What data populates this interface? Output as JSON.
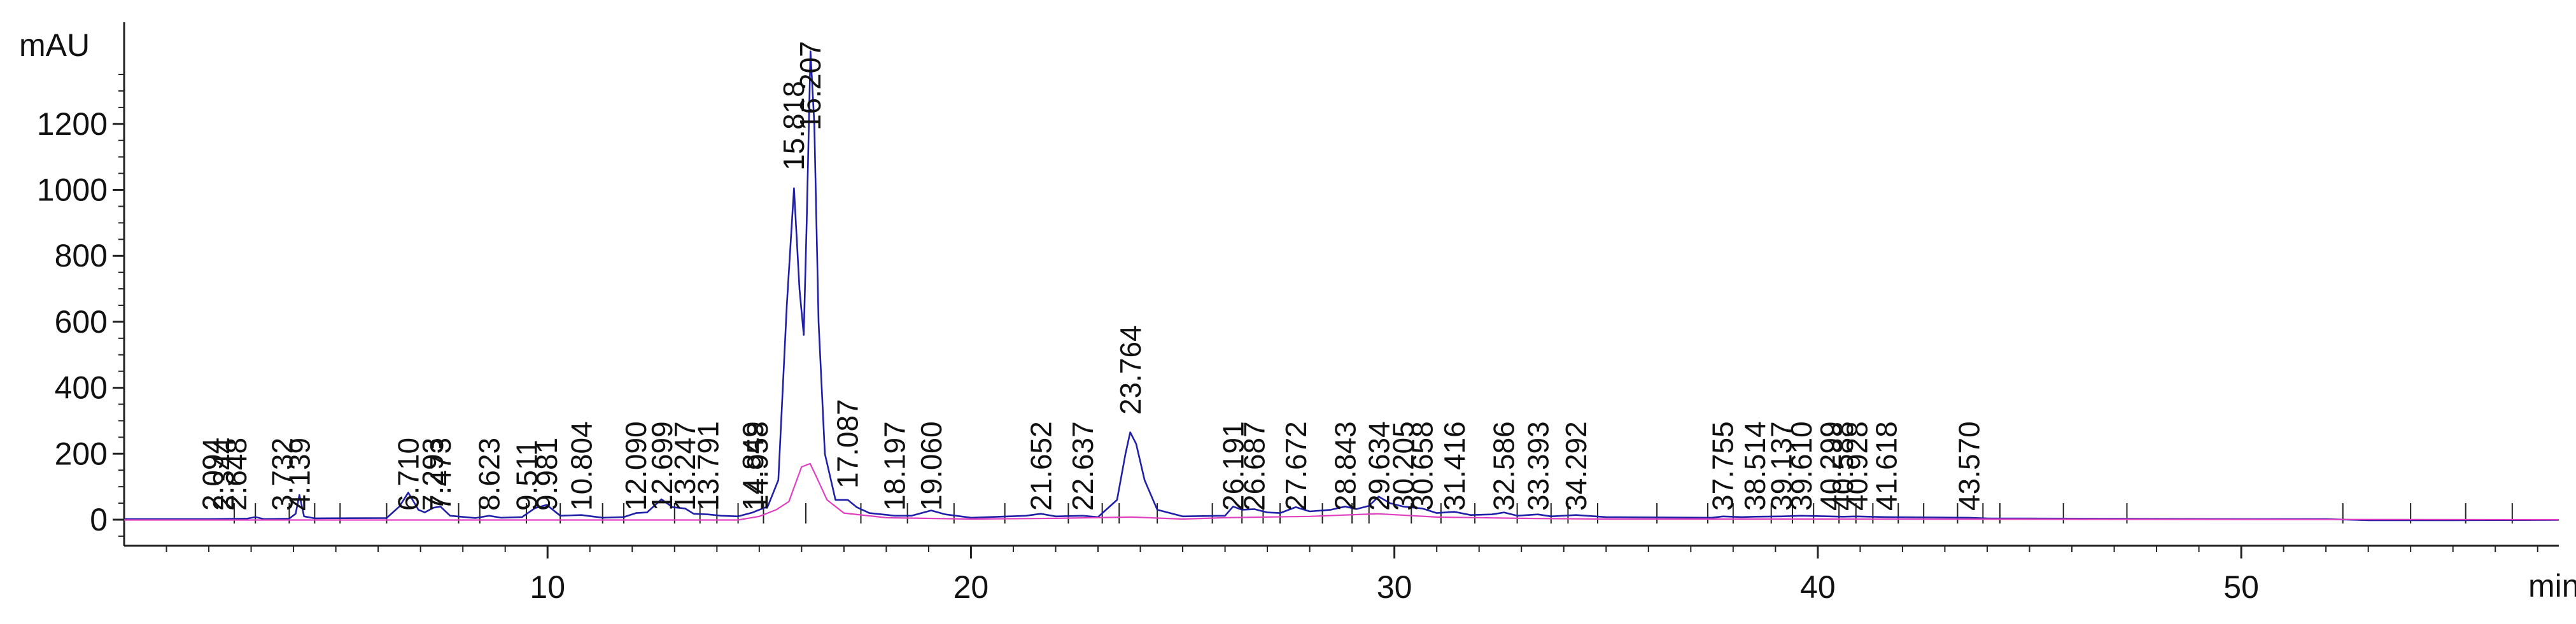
{
  "chart_data": {
    "type": "line",
    "ylabel": "mAU",
    "xlabel": "min",
    "xlim": [
      0,
      57.5
    ],
    "ylim": [
      -60,
      1450
    ],
    "x_ticks": [
      10,
      20,
      30,
      40,
      50
    ],
    "y_ticks": [
      0,
      200,
      400,
      600,
      800,
      1000,
      1200
    ],
    "series": [
      {
        "color": "#1f1fa8",
        "points": [
          [
            0,
            2
          ],
          [
            2,
            2
          ],
          [
            2.9,
            3
          ],
          [
            3.1,
            8
          ],
          [
            3.3,
            2
          ],
          [
            3.9,
            3
          ],
          [
            4.05,
            18
          ],
          [
            4.14,
            75
          ],
          [
            4.25,
            10
          ],
          [
            4.5,
            4
          ],
          [
            6.2,
            5
          ],
          [
            6.5,
            40
          ],
          [
            6.71,
            82
          ],
          [
            6.95,
            30
          ],
          [
            7.1,
            22
          ],
          [
            7.3,
            36
          ],
          [
            7.47,
            40
          ],
          [
            7.7,
            12
          ],
          [
            8.3,
            5
          ],
          [
            8.62,
            12
          ],
          [
            8.9,
            6
          ],
          [
            9.4,
            8
          ],
          [
            9.51,
            18
          ],
          [
            9.7,
            35
          ],
          [
            9.98,
            45
          ],
          [
            10.3,
            12
          ],
          [
            10.8,
            14
          ],
          [
            11.3,
            6
          ],
          [
            11.8,
            8
          ],
          [
            12.09,
            20
          ],
          [
            12.35,
            22
          ],
          [
            12.69,
            62
          ],
          [
            12.95,
            38
          ],
          [
            13.25,
            34
          ],
          [
            13.45,
            18
          ],
          [
            13.79,
            16
          ],
          [
            14.1,
            12
          ],
          [
            14.5,
            10
          ],
          [
            14.85,
            22
          ],
          [
            14.96,
            28
          ],
          [
            15.2,
            40
          ],
          [
            15.45,
            120
          ],
          [
            15.65,
            650
          ],
          [
            15.82,
            1005
          ],
          [
            15.95,
            700
          ],
          [
            16.05,
            560
          ],
          [
            16.12,
            900
          ],
          [
            16.21,
            1420
          ],
          [
            16.3,
            1200
          ],
          [
            16.4,
            600
          ],
          [
            16.55,
            200
          ],
          [
            16.8,
            60
          ],
          [
            17.09,
            60
          ],
          [
            17.3,
            38
          ],
          [
            17.6,
            20
          ],
          [
            18.2,
            12
          ],
          [
            18.6,
            12
          ],
          [
            19.06,
            28
          ],
          [
            19.4,
            16
          ],
          [
            20,
            6
          ],
          [
            21.3,
            12
          ],
          [
            21.65,
            18
          ],
          [
            22.0,
            10
          ],
          [
            22.64,
            12
          ],
          [
            23.0,
            8
          ],
          [
            23.45,
            60
          ],
          [
            23.65,
            200
          ],
          [
            23.76,
            265
          ],
          [
            23.9,
            230
          ],
          [
            24.1,
            120
          ],
          [
            24.4,
            30
          ],
          [
            25,
            10
          ],
          [
            26.0,
            12
          ],
          [
            26.19,
            40
          ],
          [
            26.4,
            30
          ],
          [
            26.69,
            32
          ],
          [
            27.0,
            22
          ],
          [
            27.3,
            20
          ],
          [
            27.67,
            38
          ],
          [
            28.0,
            25
          ],
          [
            28.5,
            30
          ],
          [
            28.84,
            40
          ],
          [
            29.1,
            32
          ],
          [
            29.4,
            42
          ],
          [
            29.63,
            70
          ],
          [
            29.9,
            50
          ],
          [
            30.2,
            40
          ],
          [
            30.66,
            34
          ],
          [
            31.0,
            20
          ],
          [
            31.42,
            24
          ],
          [
            31.8,
            14
          ],
          [
            32.3,
            16
          ],
          [
            32.59,
            22
          ],
          [
            32.9,
            12
          ],
          [
            33.39,
            16
          ],
          [
            33.7,
            10
          ],
          [
            34.29,
            14
          ],
          [
            35,
            8
          ],
          [
            37.5,
            6
          ],
          [
            37.76,
            10
          ],
          [
            38.2,
            8
          ],
          [
            38.51,
            9
          ],
          [
            39.14,
            10
          ],
          [
            39.61,
            12
          ],
          [
            40.3,
            10
          ],
          [
            40.59,
            9
          ],
          [
            40.93,
            10
          ],
          [
            41.2,
            9
          ],
          [
            41.62,
            8
          ],
          [
            43.57,
            6
          ],
          [
            44,
            4
          ],
          [
            50,
            2
          ],
          [
            52,
            2
          ],
          [
            53,
            -2
          ],
          [
            55,
            -2
          ],
          [
            57.5,
            -1
          ]
        ]
      },
      {
        "color": "#e040c0",
        "points": [
          [
            0,
            -1
          ],
          [
            14.5,
            -1
          ],
          [
            15.0,
            10
          ],
          [
            15.4,
            30
          ],
          [
            15.7,
            55
          ],
          [
            16.0,
            160
          ],
          [
            16.2,
            170
          ],
          [
            16.35,
            130
          ],
          [
            16.6,
            60
          ],
          [
            17.0,
            20
          ],
          [
            18,
            6
          ],
          [
            20,
            2
          ],
          [
            22,
            4
          ],
          [
            23.8,
            8
          ],
          [
            25,
            2
          ],
          [
            26,
            6
          ],
          [
            28,
            10
          ],
          [
            29.6,
            18
          ],
          [
            31,
            8
          ],
          [
            33,
            4
          ],
          [
            35,
            2
          ],
          [
            40,
            2
          ],
          [
            57.5,
            0
          ]
        ]
      }
    ],
    "peak_labels": [
      {
        "t": 2.094,
        "label": "2.094"
      },
      {
        "t": 2.344,
        "label": "2.344"
      },
      {
        "t": 2.648,
        "label": "2.648"
      },
      {
        "t": 3.732,
        "label": "3.732"
      },
      {
        "t": 4.139,
        "label": "4.139"
      },
      {
        "t": 6.71,
        "label": "6.710"
      },
      {
        "t": 7.293,
        "label": "7.293"
      },
      {
        "t": 7.473,
        "label": "7.473"
      },
      {
        "t": 8.623,
        "label": "8.623"
      },
      {
        "t": 9.511,
        "label": "9.511"
      },
      {
        "t": 9.981,
        "label": "9.981"
      },
      {
        "t": 10.804,
        "label": "10.804"
      },
      {
        "t": 12.09,
        "label": "12.090"
      },
      {
        "t": 12.699,
        "label": "12.699"
      },
      {
        "t": 13.247,
        "label": "13.247"
      },
      {
        "t": 13.791,
        "label": "13.791"
      },
      {
        "t": 14.849,
        "label": "14.849"
      },
      {
        "t": 14.958,
        "label": "14.958"
      },
      {
        "t": 15.818,
        "label": "15.818"
      },
      {
        "t": 16.207,
        "label": "16.207"
      },
      {
        "t": 17.087,
        "label": "17.087"
      },
      {
        "t": 18.197,
        "label": "18.197"
      },
      {
        "t": 19.06,
        "label": "19.060"
      },
      {
        "t": 21.652,
        "label": "21.652"
      },
      {
        "t": 22.637,
        "label": "22.637"
      },
      {
        "t": 23.764,
        "label": "23.764"
      },
      {
        "t": 26.191,
        "label": "26.191"
      },
      {
        "t": 26.687,
        "label": "26.687"
      },
      {
        "t": 27.672,
        "label": "27.672"
      },
      {
        "t": 28.843,
        "label": "28.843"
      },
      {
        "t": 29.634,
        "label": "29.634"
      },
      {
        "t": 30.205,
        "label": "30.205"
      },
      {
        "t": 30.658,
        "label": "30.658"
      },
      {
        "t": 31.416,
        "label": "31.416"
      },
      {
        "t": 32.586,
        "label": "32.586"
      },
      {
        "t": 33.393,
        "label": "33.393"
      },
      {
        "t": 34.292,
        "label": "34.292"
      },
      {
        "t": 37.755,
        "label": "37.755"
      },
      {
        "t": 38.514,
        "label": "38.514"
      },
      {
        "t": 39.137,
        "label": "39.137"
      },
      {
        "t": 39.61,
        "label": "39.610"
      },
      {
        "t": 40.299,
        "label": "40.299"
      },
      {
        "t": 40.588,
        "label": "40.588"
      },
      {
        "t": 40.928,
        "label": "40.928"
      },
      {
        "t": 41.618,
        "label": "41.618"
      },
      {
        "t": 43.57,
        "label": "43.570"
      }
    ]
  }
}
